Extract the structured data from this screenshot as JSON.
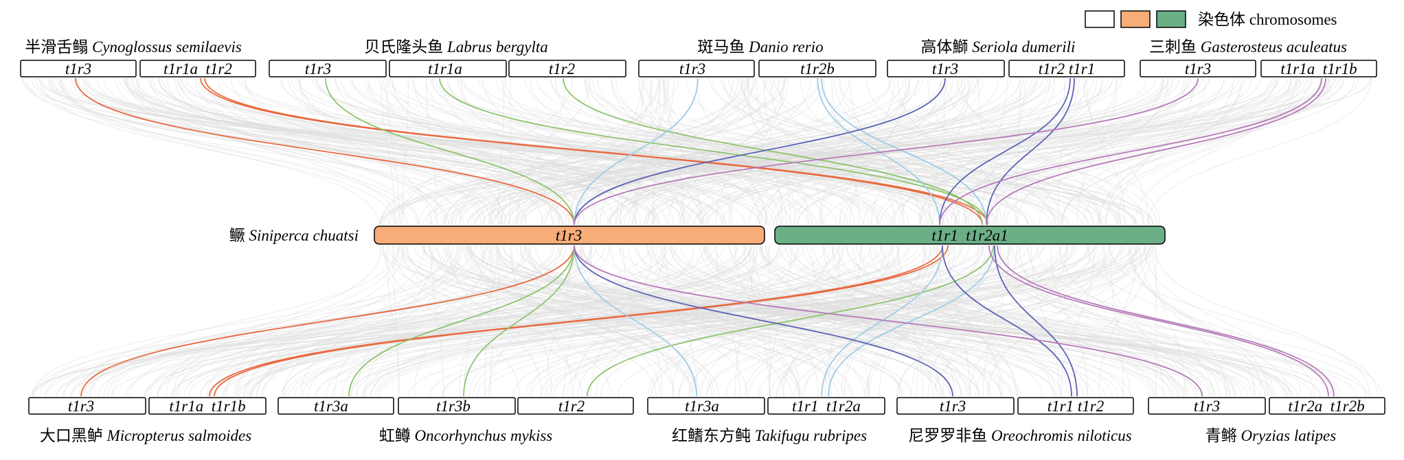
{
  "legend": {
    "label": "染色体 chromosomes",
    "swatches": [
      {
        "name": "ortholog-chromosome",
        "color": "#ffffff"
      },
      {
        "name": "reference-chromosome-1",
        "color": "#f6ad78"
      },
      {
        "name": "reference-chromosome-2",
        "color": "#6aaf86"
      }
    ]
  },
  "colors": {
    "background_links": "#dddddd",
    "box_stroke": "#000000"
  },
  "reference": {
    "species_cn": "鳜",
    "species_latin": "Siniperca chuatsi",
    "chromosomes": [
      {
        "label": "t1r3",
        "color": "#f6ad78"
      },
      {
        "label": "t1r1  t1r2a1",
        "color": "#6aaf86"
      }
    ]
  },
  "top_species": [
    {
      "cn": "半滑舌鳎",
      "latin": "Cynoglossus semilaevis",
      "link_color": "#e8693f",
      "chromosomes": [
        {
          "label": "t1r3"
        },
        {
          "label": "t1r1a  t1r2"
        }
      ]
    },
    {
      "cn": "贝氏隆头鱼",
      "latin": "Labrus bergylta",
      "link_color": "#8cc46a",
      "chromosomes": [
        {
          "label": "t1r3"
        },
        {
          "label": "t1r1a"
        },
        {
          "label": "t1r2"
        }
      ]
    },
    {
      "cn": "斑马鱼",
      "latin": "Danio rerio",
      "link_color": "#9fcde6",
      "chromosomes": [
        {
          "label": "t1r3"
        },
        {
          "label": "t1r2b"
        }
      ]
    },
    {
      "cn": "高体鰤",
      "latin": "Seriola dumerili",
      "link_color": "#5a61b4",
      "chromosomes": [
        {
          "label": "t1r3"
        },
        {
          "label": "t1r2 t1r1"
        }
      ]
    },
    {
      "cn": "三刺鱼",
      "latin": "Gasterosteus aculeatus",
      "link_color": "#b57ab8",
      "chromosomes": [
        {
          "label": "t1r3"
        },
        {
          "label": "t1r1a  t1r1b"
        }
      ]
    }
  ],
  "bottom_species": [
    {
      "cn": "大口黑鲈",
      "latin": "Micropterus salmoides",
      "link_color": "#e8693f",
      "chromosomes": [
        {
          "label": "t1r3"
        },
        {
          "label": "t1r1a  t1r1b"
        }
      ]
    },
    {
      "cn": "虹鳟",
      "latin": "Oncorhynchus mykiss",
      "link_color": "#8cc46a",
      "chromosomes": [
        {
          "label": "t1r3a"
        },
        {
          "label": "t1r3b"
        },
        {
          "label": "t1r2"
        }
      ]
    },
    {
      "cn": "红鳍东方鲀",
      "latin": "Takifugu rubripes",
      "link_color": "#9fcde6",
      "chromosomes": [
        {
          "label": "t1r3a"
        },
        {
          "label": "t1r1  t1r2a"
        }
      ]
    },
    {
      "cn": "尼罗罗非鱼",
      "latin": "Oreochromis niloticus",
      "link_color": "#5a61b4",
      "chromosomes": [
        {
          "label": "t1r3"
        },
        {
          "label": "t1r1 t1r2"
        }
      ]
    },
    {
      "cn": "青鳉",
      "latin": "Oryzias latipes",
      "link_color": "#b57ab8",
      "chromosomes": [
        {
          "label": "t1r3"
        },
        {
          "label": "t1r2a  t1r2b"
        }
      ]
    }
  ]
}
